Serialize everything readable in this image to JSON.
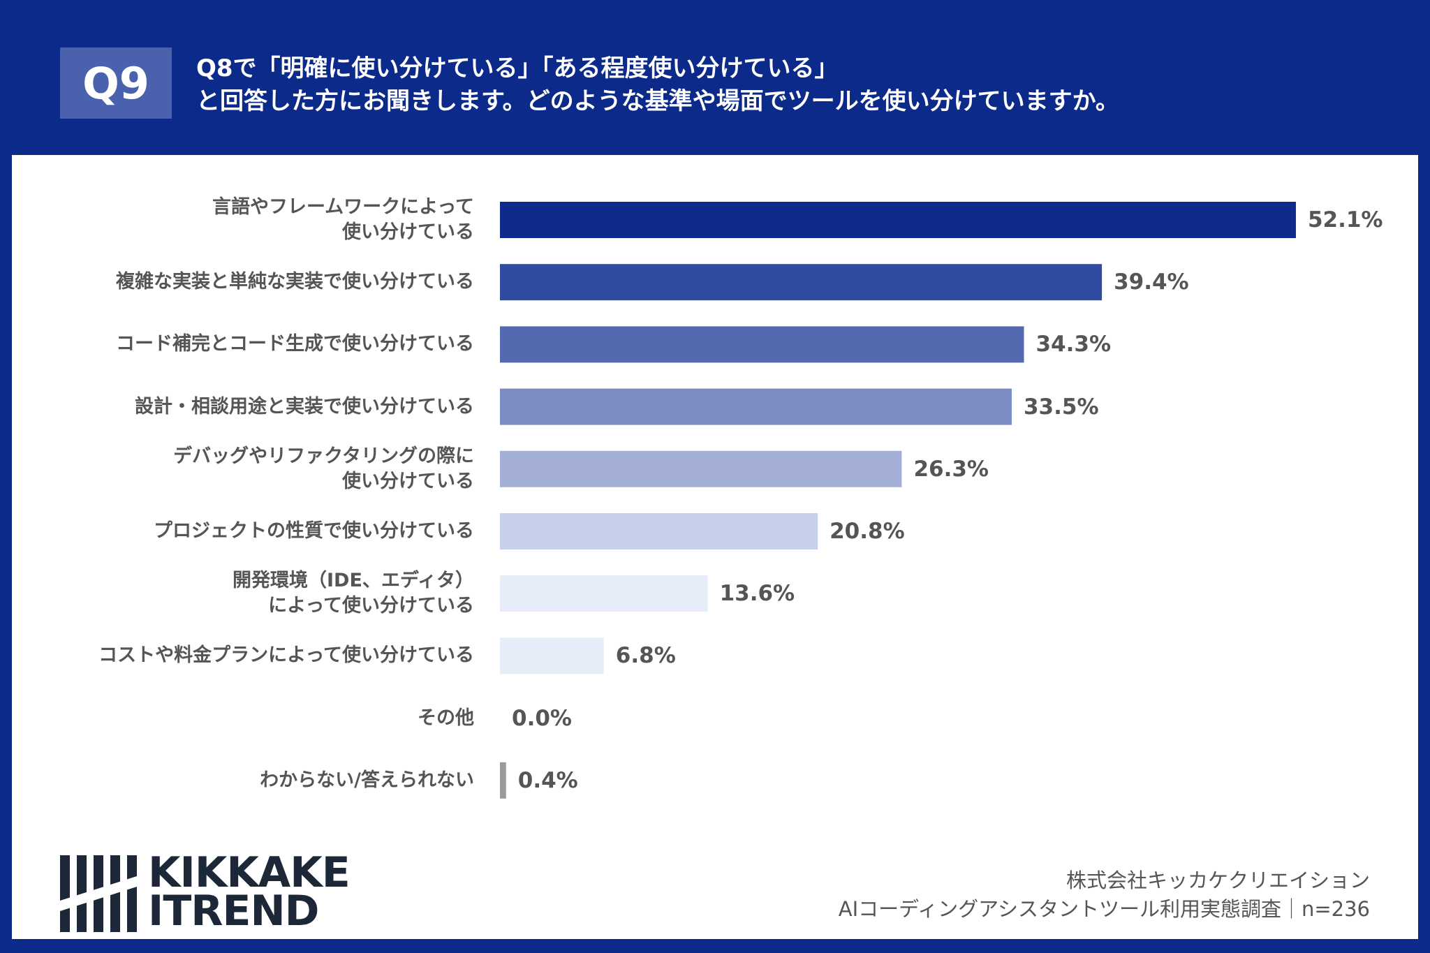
{
  "header": {
    "badge": "Q9",
    "title_lines": [
      "Q8で「明確に使い分けている」「ある程度使い分けている」",
      "と回答した方にお聞きします。どのような基準や場面でツールを使い分けていますか。"
    ]
  },
  "chart_data": {
    "type": "hbar",
    "categories": [
      "言語やフレームワークによって\n使い分けている",
      "複雑な実装と単純な実装で使い分けている",
      "コード補完とコード生成で使い分けている",
      "設計・相談用途と実装で使い分けている",
      "デバッグやリファクタリングの際に\n使い分けている",
      "プロジェクトの性質で使い分けている",
      "開発環境（IDE、エディタ）\nによって使い分けている",
      "コストや料金プランによって使い分けている",
      "その他",
      "わからない/答えられない"
    ],
    "values": [
      52.1,
      39.4,
      34.3,
      33.5,
      26.3,
      20.8,
      13.6,
      6.8,
      0.0,
      0.4
    ],
    "value_labels": [
      "52.1%",
      "39.4%",
      "34.3%",
      "33.5%",
      "26.3%",
      "20.8%",
      "13.6%",
      "6.8%",
      "0.0%",
      "0.4%"
    ],
    "colors": [
      "#0d2a8c",
      "#2f4b9f",
      "#536ab1",
      "#7c8dc3",
      "#a3afd7",
      "#c7d0e9",
      "#e7edf8",
      "#e7edf8",
      "#e7edf8",
      "#9a9a9a"
    ]
  },
  "logo": {
    "line1": "KIKKAKE",
    "line2": "ITREND"
  },
  "footer": {
    "company": "株式会社キッカケクリエイション",
    "survey": "AIコーディングアシスタントツール利用実態調査｜n=236"
  }
}
